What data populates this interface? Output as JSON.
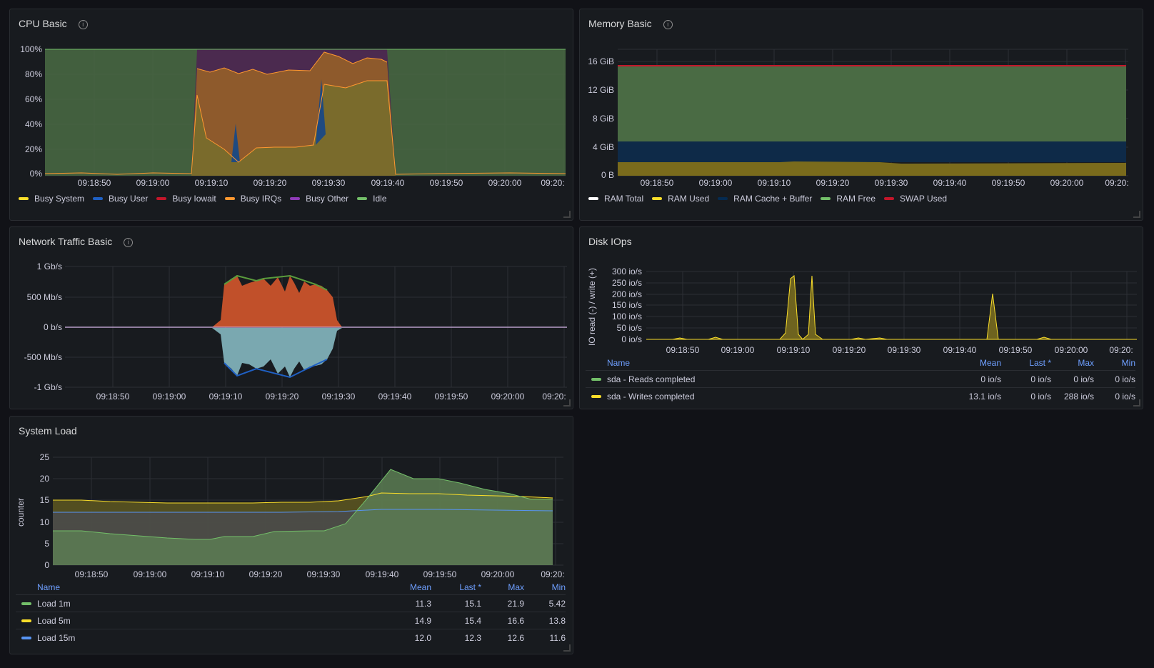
{
  "panels": {
    "cpu": {
      "title": "CPU Basic",
      "info_glyph": "i",
      "yticks": [
        "100%",
        "80%",
        "60%",
        "40%",
        "20%",
        "0%"
      ],
      "xticks": [
        "09:18:50",
        "09:19:00",
        "09:19:10",
        "09:19:20",
        "09:19:30",
        "09:19:40",
        "09:19:50",
        "09:20:00",
        "09:20:"
      ],
      "legend": [
        {
          "label": "Busy System",
          "color": "#fade2a"
        },
        {
          "label": "Busy User",
          "color": "#1f60c4"
        },
        {
          "label": "Busy Iowait",
          "color": "#c4162a"
        },
        {
          "label": "Busy IRQs",
          "color": "#ff9830"
        },
        {
          "label": "Busy Other",
          "color": "#8f3bb8"
        },
        {
          "label": "Idle",
          "color": "#73bf69"
        }
      ]
    },
    "memory": {
      "title": "Memory Basic",
      "info_glyph": "i",
      "yticks": [
        "16 GiB",
        "12 GiB",
        "8 GiB",
        "4 GiB",
        "0 B"
      ],
      "xticks": [
        "09:18:50",
        "09:19:00",
        "09:19:10",
        "09:19:20",
        "09:19:30",
        "09:19:40",
        "09:19:50",
        "09:20:00",
        "09:20:"
      ],
      "legend": [
        {
          "label": "RAM Total",
          "color": "#ffffff"
        },
        {
          "label": "RAM Used",
          "color": "#fade2a"
        },
        {
          "label": "RAM Cache + Buffer",
          "color": "#052b51"
        },
        {
          "label": "RAM Free",
          "color": "#73bf69"
        },
        {
          "label": "SWAP Used",
          "color": "#c4162a"
        }
      ]
    },
    "network": {
      "title": "Network Traffic Basic",
      "info_glyph": "i",
      "yticks": [
        "1 Gb/s",
        "500 Mb/s",
        "0 b/s",
        "-500 Mb/s",
        "-1 Gb/s"
      ],
      "xticks": [
        "09:18:50",
        "09:19:00",
        "09:19:10",
        "09:19:20",
        "09:19:30",
        "09:19:40",
        "09:19:50",
        "09:20:00",
        "09:20:"
      ]
    },
    "disk": {
      "title": "Disk IOps",
      "ylabel": "IO read (-) / write (+)",
      "yticks": [
        "300 io/s",
        "250 io/s",
        "200 io/s",
        "150 io/s",
        "100 io/s",
        "50 io/s",
        "0 io/s"
      ],
      "xticks": [
        "09:18:50",
        "09:19:00",
        "09:19:10",
        "09:19:20",
        "09:19:30",
        "09:19:40",
        "09:19:50",
        "09:20:00",
        "09:20:"
      ],
      "table": {
        "headers": {
          "name": "Name",
          "mean": "Mean",
          "last": "Last *",
          "max": "Max",
          "min": "Min"
        },
        "rows": [
          {
            "name": "sda - Reads completed",
            "color": "#73bf69",
            "mean": "0 io/s",
            "last": "0 io/s",
            "max": "0 io/s",
            "min": "0 io/s"
          },
          {
            "name": "sda - Writes completed",
            "color": "#fade2a",
            "mean": "13.1 io/s",
            "last": "0 io/s",
            "max": "288 io/s",
            "min": "0 io/s"
          }
        ]
      }
    },
    "load": {
      "title": "System Load",
      "ylabel": "counter",
      "yticks": [
        "25",
        "20",
        "15",
        "10",
        "5",
        "0"
      ],
      "xticks": [
        "09:18:50",
        "09:19:00",
        "09:19:10",
        "09:19:20",
        "09:19:30",
        "09:19:40",
        "09:19:50",
        "09:20:00",
        "09:20:"
      ],
      "table": {
        "headers": {
          "name": "Name",
          "mean": "Mean",
          "last": "Last *",
          "max": "Max",
          "min": "Min"
        },
        "rows": [
          {
            "name": "Load 1m",
            "color": "#73bf69",
            "mean": "11.3",
            "last": "15.1",
            "max": "21.9",
            "min": "5.42"
          },
          {
            "name": "Load 5m",
            "color": "#fade2a",
            "mean": "14.9",
            "last": "15.4",
            "max": "16.6",
            "min": "13.8"
          },
          {
            "name": "Load 15m",
            "color": "#5794f2",
            "mean": "12.0",
            "last": "12.3",
            "max": "12.6",
            "min": "11.6"
          }
        ]
      }
    }
  }
}
